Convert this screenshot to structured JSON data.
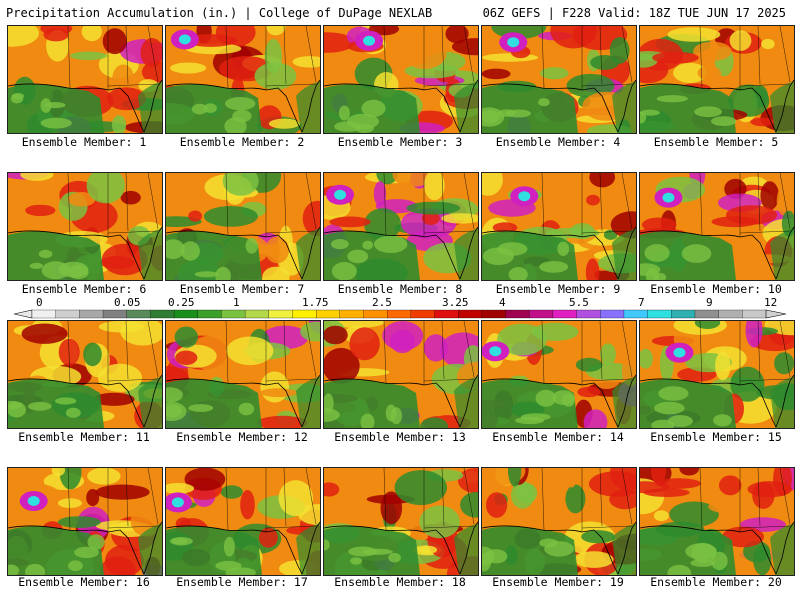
{
  "header": {
    "left": "Precipitation Accumulation (in.) | College of DuPage NEXLAB",
    "right": "06Z GEFS | F228 Valid: 18Z TUE JUN 17 2025"
  },
  "members": [
    "Ensemble Member: 1",
    "Ensemble Member: 2",
    "Ensemble Member: 3",
    "Ensemble Member: 4",
    "Ensemble Member: 5",
    "Ensemble Member: 6",
    "Ensemble Member: 7",
    "Ensemble Member: 8",
    "Ensemble Member: 9",
    "Ensemble Member: 10",
    "Ensemble Member: 11",
    "Ensemble Member: 12",
    "Ensemble Member: 13",
    "Ensemble Member: 14",
    "Ensemble Member: 15",
    "Ensemble Member: 16",
    "Ensemble Member: 17",
    "Ensemble Member: 18",
    "Ensemble Member: 19",
    "Ensemble Member: 20"
  ],
  "colorbar": {
    "labels": [
      "0",
      "0.05",
      "0.25",
      "1",
      "1.75",
      "2.5",
      "3.25",
      "4",
      "5.5",
      "7",
      "9",
      "12"
    ],
    "colors": [
      "#f0f0f0",
      "#cfcfcf",
      "#a8a8a8",
      "#808080",
      "#5a8a5a",
      "#2e7d32",
      "#1b8f1b",
      "#3aa02a",
      "#7cc242",
      "#b4d84a",
      "#f0f040",
      "#fff000",
      "#ffd000",
      "#ffb000",
      "#ff9000",
      "#ff6a00",
      "#f03c00",
      "#e01010",
      "#c00000",
      "#a00000",
      "#a00050",
      "#c0108a",
      "#e020c0",
      "#b050e0",
      "#8a70ff",
      "#40c8ff",
      "#30e0e0",
      "#30b0b0",
      "#909090",
      "#b0b0b0",
      "#c8c8c8"
    ]
  },
  "palette": {
    "low_green": "#2e8b2e",
    "light_green": "#7cc242",
    "yellow": "#f4e030",
    "orange": "#f08a10",
    "red": "#e02010",
    "darkred": "#a00000",
    "magenta": "#d020c0",
    "cyan": "#30e0e0",
    "gray": "#909090"
  }
}
